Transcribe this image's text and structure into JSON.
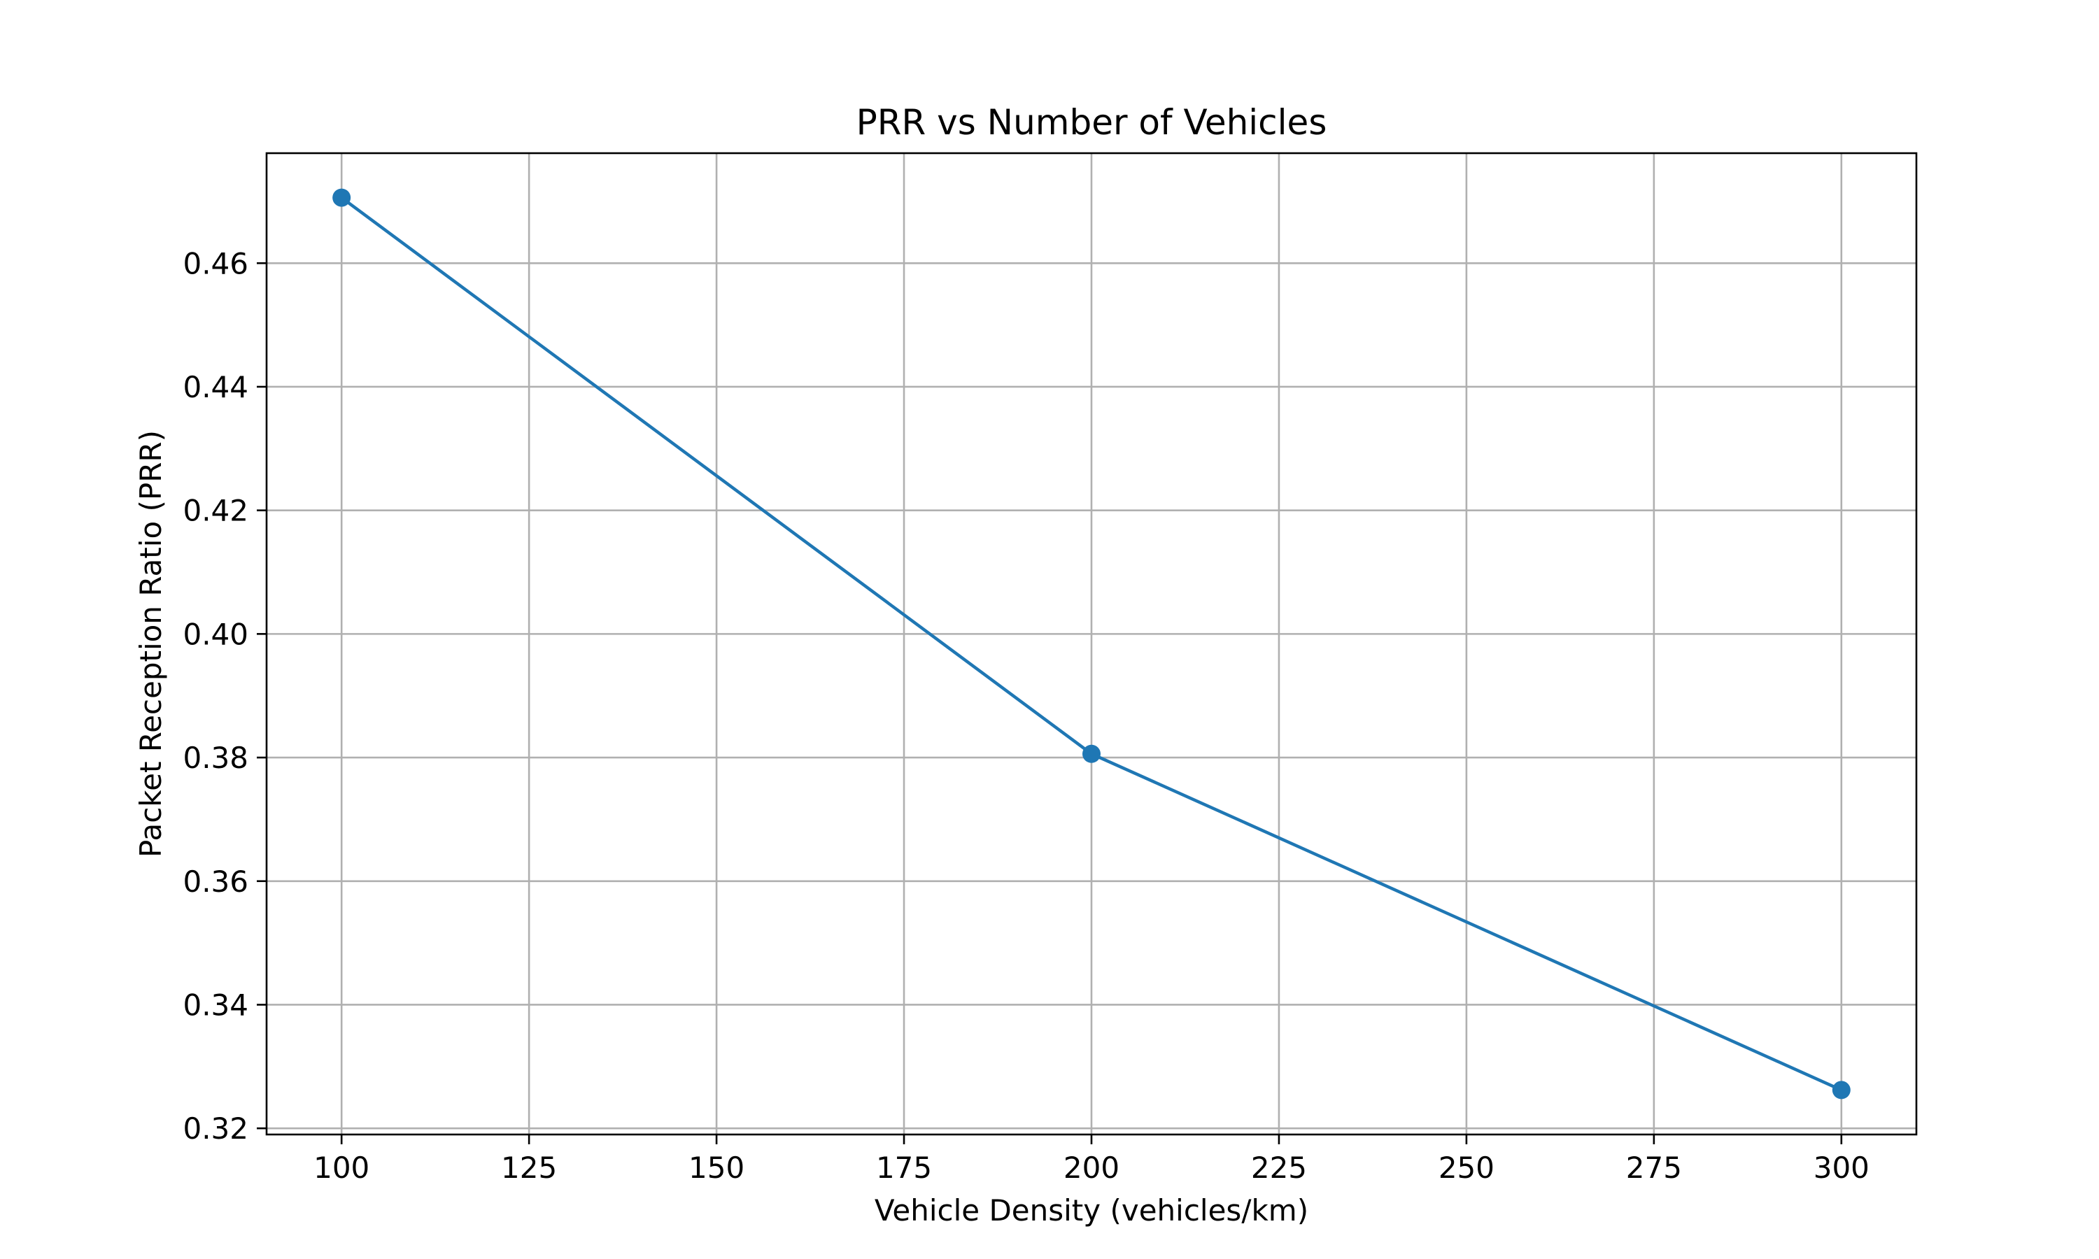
{
  "chart_data": {
    "type": "line",
    "title": "PRR vs Number of Vehicles",
    "xlabel": "Vehicle Density (vehicles/km)",
    "ylabel": "Packet Reception Ratio (PRR)",
    "x": [
      100,
      200,
      300
    ],
    "series": [
      {
        "values": [
          0.4706,
          0.3806,
          0.3262
        ],
        "color": "#1f77b4",
        "marker": "circle"
      }
    ],
    "xlim": [
      90,
      310
    ],
    "ylim": [
      0.319,
      0.4778
    ],
    "xticks": [
      100,
      125,
      150,
      175,
      200,
      225,
      250,
      275,
      300
    ],
    "xtick_labels": [
      "100",
      "125",
      "150",
      "175",
      "200",
      "225",
      "250",
      "275",
      "300"
    ],
    "yticks": [
      0.32,
      0.34,
      0.36,
      0.38,
      0.4,
      0.42,
      0.44,
      0.46
    ],
    "ytick_labels": [
      "0.32",
      "0.34",
      "0.36",
      "0.38",
      "0.40",
      "0.42",
      "0.44",
      "0.46"
    ],
    "grid": true,
    "legend": "none"
  }
}
